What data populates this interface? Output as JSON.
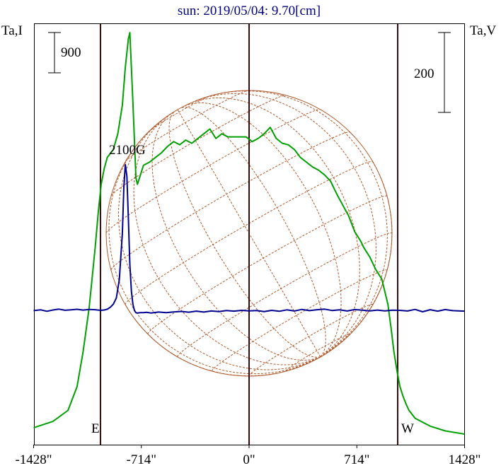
{
  "chart_data": {
    "type": "line",
    "title": "sun: 2019/05/04: 9.70[cm]",
    "ylabel_left": "Ta,I",
    "ylabel_right": "Ta,V",
    "x_ticks": [
      {
        "value": -1428,
        "label": "-1428\""
      },
      {
        "value": -714,
        "label": "-714\""
      },
      {
        "value": 0,
        "label": "0\""
      },
      {
        "value": 714,
        "label": "714\""
      },
      {
        "value": 1428,
        "label": "1428\""
      }
    ],
    "xlim": [
      -1428,
      1428
    ],
    "limb_markers": [
      {
        "label": "E",
        "value": -985
      },
      {
        "label": "W",
        "value": 985
      }
    ],
    "scale_bars": [
      {
        "axis": "left",
        "label": "900"
      },
      {
        "axis": "right",
        "label": "200"
      }
    ],
    "annotation": {
      "text": "2100G",
      "x": -800
    },
    "colors": {
      "stokes_i": "#00a000",
      "stokes_v": "#000090",
      "disk": "#b0582a",
      "title": "#000080",
      "axis": "#3a0a0a"
    },
    "series": [
      {
        "key": "I",
        "x": [
          -1428,
          -1300,
          -1200,
          -1140,
          -1100,
          -1060,
          -1020,
          -1000,
          -980,
          -960,
          -940,
          -900,
          -870,
          -840,
          -820,
          -800,
          -790,
          -770,
          -750,
          -740,
          -720,
          -700,
          -660,
          -620,
          -580,
          -540,
          -500,
          -460,
          -420,
          -380,
          -340,
          -300,
          -260,
          -220,
          -180,
          -140,
          -100,
          -60,
          -20,
          20,
          60,
          100,
          140,
          180,
          220,
          260,
          300,
          340,
          380,
          420,
          460,
          500,
          540,
          580,
          620,
          660,
          700,
          740,
          760,
          800,
          840,
          880,
          920,
          940,
          960,
          980,
          1000,
          1020,
          1040,
          1060,
          1100,
          1140,
          1200,
          1300,
          1428
        ],
        "y": [
          40,
          80,
          150,
          300,
          520,
          800,
          1180,
          1400,
          1580,
          1680,
          1750,
          1800,
          1900,
          2080,
          2320,
          2500,
          2540,
          2100,
          1620,
          1580,
          1640,
          1700,
          1720,
          1750,
          1780,
          1820,
          1850,
          1830,
          1860,
          1840,
          1870,
          1900,
          1930,
          1870,
          1900,
          1880,
          1880,
          1880,
          1880,
          1850,
          1870,
          1900,
          1940,
          1870,
          1840,
          1830,
          1800,
          1750,
          1720,
          1690,
          1670,
          1640,
          1600,
          1520,
          1450,
          1380,
          1280,
          1220,
          1180,
          1120,
          1040,
          980,
          820,
          680,
          520,
          400,
          300,
          240,
          190,
          150,
          100,
          80,
          50,
          20,
          0
        ]
      },
      {
        "key": "V",
        "x": [
          -1428,
          -1380,
          -1340,
          -1300,
          -1260,
          -1220,
          -1180,
          -1140,
          -1100,
          -1060,
          -1020,
          -985,
          -960,
          -940,
          -920,
          -900,
          -880,
          -860,
          -840,
          -830,
          -820,
          -810,
          -800,
          -790,
          -780,
          -770,
          -760,
          -750,
          -740,
          -730,
          -720,
          -700,
          -680,
          -650,
          -600,
          -550,
          -500,
          -450,
          -400,
          -350,
          -300,
          -250,
          -200,
          -150,
          -100,
          -50,
          0,
          50,
          100,
          150,
          200,
          250,
          300,
          350,
          400,
          450,
          500,
          550,
          600,
          650,
          700,
          750,
          800,
          850,
          900,
          950,
          1000,
          1050,
          1100,
          1150,
          1200,
          1250,
          1300,
          1350,
          1400,
          1428
        ],
        "y": [
          -0.4,
          0.6,
          -1.2,
          0.5,
          1.6,
          0.1,
          0.7,
          1.4,
          0.4,
          1.2,
          0.8,
          0.0,
          0.5,
          1.5,
          4,
          8,
          16,
          40,
          100,
          160,
          190,
          175,
          120,
          60,
          25,
          8,
          0,
          -3,
          -3.5,
          -3.2,
          -3,
          -3,
          -2.6,
          -3.4,
          -2.2,
          -3.0,
          -2.0,
          -1.4,
          -2.4,
          -1.0,
          -2.2,
          -0.8,
          -1.6,
          -0.2,
          -1.0,
          0.0,
          -0.6,
          -0.2,
          -1.6,
          0.0,
          -1.2,
          0.6,
          -0.8,
          1.2,
          -0.4,
          0.8,
          1.6,
          -0.2,
          0.6,
          -0.8,
          1.0,
          0.2,
          -0.6,
          0.4,
          -0.6,
          0.2,
          0.0,
          -0.8,
          1.2,
          -1.8,
          0.8,
          -1.0,
          1.0,
          -0.4,
          -0.8,
          -1.0
        ]
      }
    ]
  }
}
